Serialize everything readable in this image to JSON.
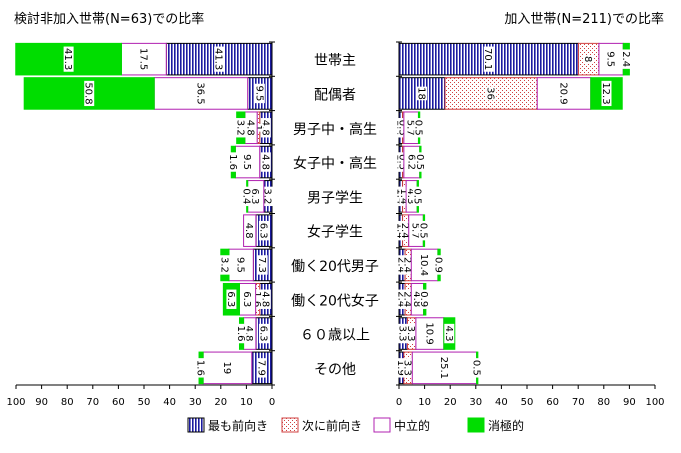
{
  "chart_data": {
    "type": "bar",
    "orientation": "horizontal",
    "stacked": true,
    "grid": false,
    "legend_position": "bottom",
    "categories": [
      "世帯主",
      "配偶者",
      "男子中・高生",
      "女子中・高生",
      "男子学生",
      "女子学生",
      "働く20代男子",
      "働く20代女子",
      "６０歳以上",
      "その他"
    ],
    "left_panel": {
      "title": "検討非加入世帯(N=63)での比率",
      "axis_direction": "reversed",
      "xlim": [
        0,
        100
      ],
      "ticks": [
        100,
        90,
        80,
        70,
        60,
        50,
        40,
        30,
        20,
        10,
        0
      ],
      "series": [
        {
          "name": "最も前向き",
          "values": [
            41.3,
            9.5,
            4.8,
            4.8,
            3.2,
            6.3,
            7.3,
            4.8,
            6.3,
            7.9
          ]
        },
        {
          "name": "次に前向き",
          "values": [
            0,
            0,
            1.0,
            0,
            0,
            0,
            0,
            1.6,
            0,
            0
          ]
        },
        {
          "name": "中立的",
          "values": [
            17.5,
            36.5,
            4.8,
            9.5,
            6.3,
            4.8,
            9.5,
            6.3,
            4.8,
            19.0
          ]
        },
        {
          "name": "消極的",
          "values": [
            41.3,
            50.8,
            3.2,
            1.6,
            0.4,
            0,
            3.2,
            6.3,
            1.6,
            1.6
          ]
        }
      ]
    },
    "right_panel": {
      "title": "加入世帯(N=211)での比率",
      "axis_direction": "normal",
      "xlim": [
        0,
        100
      ],
      "ticks": [
        0,
        10,
        20,
        30,
        40,
        50,
        60,
        70,
        80,
        90,
        100
      ],
      "series": [
        {
          "name": "最も前向き",
          "values": [
            70.1,
            18.0,
            1.4,
            1.4,
            1.4,
            1.4,
            2.4,
            2.4,
            3.3,
            1.9
          ]
        },
        {
          "name": "次に前向き",
          "values": [
            8.0,
            36.0,
            0.5,
            0.5,
            1.4,
            2.4,
            2.4,
            2.4,
            3.3,
            3.3
          ]
        },
        {
          "name": "中立的",
          "values": [
            9.5,
            20.9,
            5.7,
            6.2,
            4.3,
            5.7,
            10.4,
            4.8,
            10.9,
            25.1
          ]
        },
        {
          "name": "消極的",
          "values": [
            2.4,
            12.3,
            0.5,
            0.5,
            0.5,
            0.5,
            0.9,
            0.9,
            4.3,
            0.5
          ]
        }
      ]
    },
    "legend": [
      "最も前向き",
      "次に前向き",
      "中立的",
      "消極的"
    ],
    "colors": {
      "most": "#1a1aa0",
      "next": "#d04040",
      "neutral": "#b020b0",
      "negative": "#00dd00"
    }
  }
}
